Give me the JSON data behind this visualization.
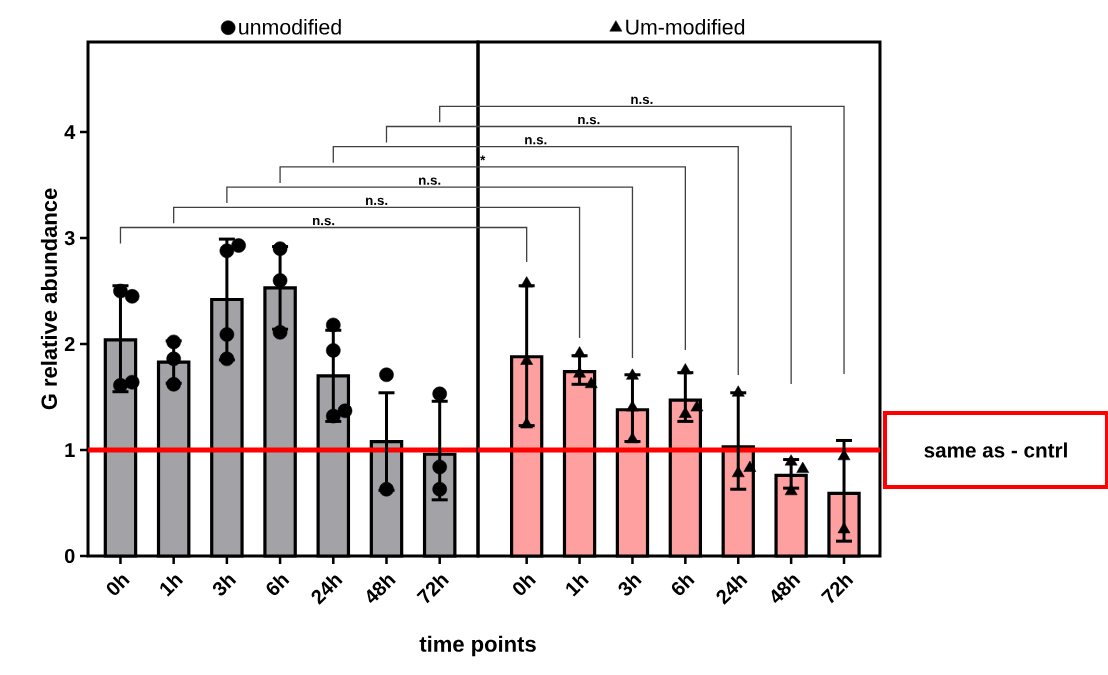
{
  "chart_data": [
    {
      "type": "bar",
      "ylabel": "G relative abundance",
      "xlabel": "time points",
      "categories": [
        "0h",
        "1h",
        "3h",
        "6h",
        "24h",
        "48h",
        "72h"
      ],
      "ylim": [
        0,
        4.85
      ],
      "yticks": [
        0,
        1,
        2,
        3,
        4
      ],
      "legend": "top",
      "series": [
        {
          "type": "bar",
          "color": "#a3a2a7",
          "values": [
            2.04,
            1.83,
            2.42,
            2.53,
            1.7,
            1.08,
            0.96
          ],
          "errors": [
            [
              1.55,
              2.55
            ],
            0.2,
            0.57,
            0.39,
            [
              1.27,
              2.13
            ],
            0.46,
            [
              0.53,
              1.46
            ]
          ]
        },
        {
          "type": "scatter",
          "name": "unmodified",
          "color": "#000000",
          "marker": "circle",
          "x": [
            "0h",
            "0h",
            "0h",
            "0h",
            "1h",
            "1h",
            "1h",
            "3h",
            "3h",
            "3h",
            "3h",
            "6h",
            "6h",
            "6h",
            "24h",
            "24h",
            "24h",
            "24h",
            "48h",
            "48h",
            "72h",
            "72h",
            "72h"
          ],
          "values": [
            2.5,
            2.45,
            1.61,
            1.64,
            2.02,
            1.86,
            1.62,
            2.88,
            2.93,
            2.09,
            1.86,
            2.9,
            2.6,
            2.11,
            2.18,
            1.94,
            1.32,
            1.37,
            1.71,
            0.63,
            1.53,
            0.84,
            0.63
          ]
        }
      ],
      "ref_lines": [
        {
          "axis": "y",
          "value": 1,
          "color": "#ff0000"
        }
      ],
      "annotations": [
        "n.s.",
        "n.s.",
        "n.s.",
        "*",
        "n.s.",
        "n.s.",
        "n.s."
      ]
    },
    {
      "type": "bar",
      "categories": [
        "0h",
        "1h",
        "3h",
        "6h",
        "24h",
        "48h",
        "72h"
      ],
      "ylim": [
        0,
        4.85
      ],
      "tick_labels": "x",
      "legend": "top",
      "series": [
        {
          "type": "bar",
          "color": "#ffa0a0",
          "values": [
            1.88,
            1.74,
            1.38,
            1.47,
            1.03,
            0.76,
            0.59
          ],
          "errors": [
            [
              1.23,
              2.55
            ],
            [
              1.62,
              1.89
            ],
            [
              1.08,
              1.71
            ],
            [
              1.27,
              1.73
            ],
            [
              0.63,
              1.54
            ],
            [
              0.64,
              0.91
            ],
            [
              0.14,
              1.09
            ]
          ]
        },
        {
          "type": "scatter",
          "name": "Um-modified",
          "color": "#000000",
          "marker": "triangle",
          "x": [
            "0h",
            "0h",
            "0h",
            "1h",
            "1h",
            "1h",
            "3h",
            "3h",
            "3h",
            "6h",
            "6h",
            "6h",
            "24h",
            "24h",
            "24h",
            "48h",
            "48h",
            "48h",
            "72h",
            "72h"
          ],
          "values": [
            2.57,
            1.84,
            1.24,
            1.91,
            1.72,
            1.62,
            1.7,
            1.4,
            1.1,
            1.75,
            1.34,
            1.4,
            1.54,
            0.78,
            0.83,
            0.89,
            0.82,
            0.61,
            0.94,
            0.25
          ]
        }
      ],
      "ref_lines": [
        {
          "axis": "y",
          "value": 1,
          "color": "#ff0000",
          "label": "same as - cntrl"
        }
      ]
    }
  ]
}
